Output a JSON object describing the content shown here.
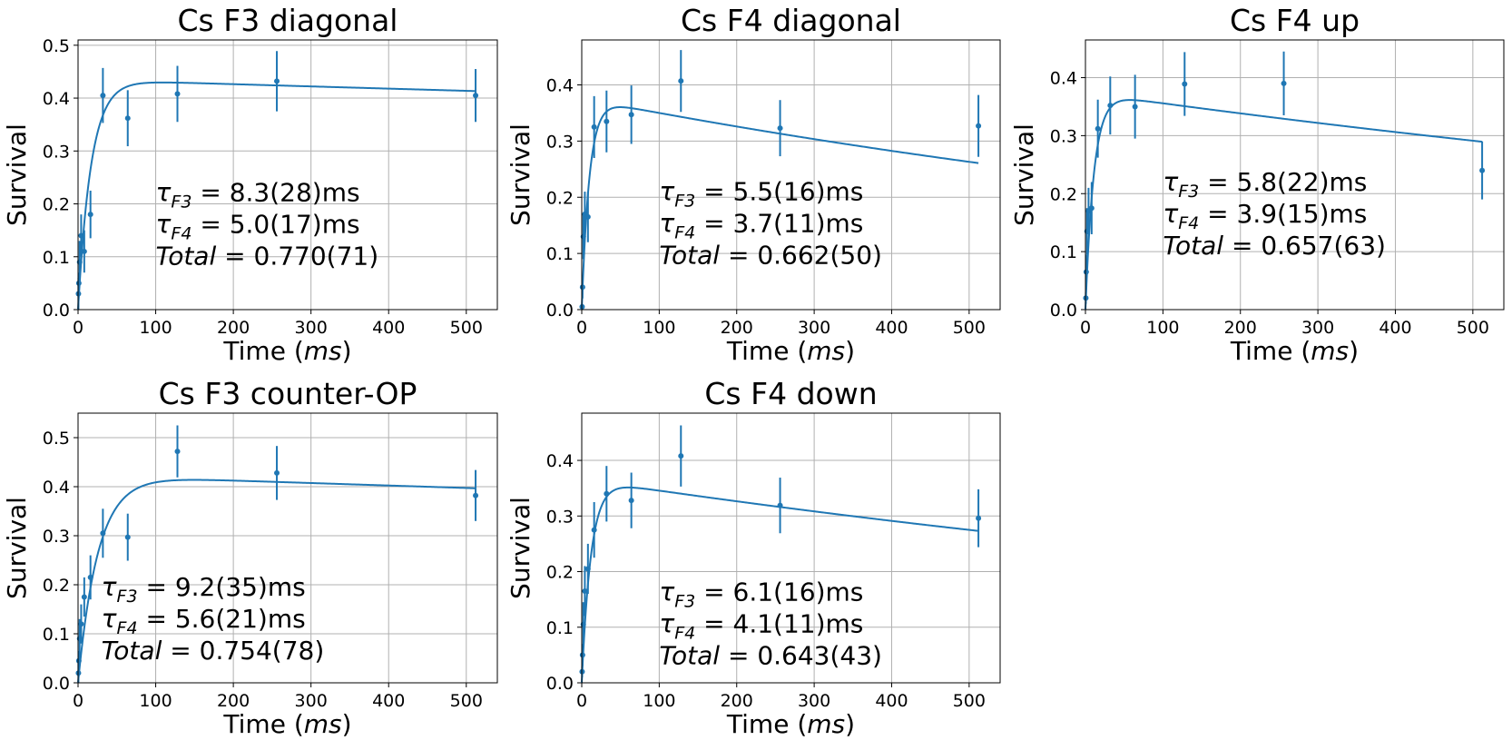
{
  "figure": {
    "series_color": "#1f77b4",
    "grid_color": "#b0b0b0"
  },
  "chart_data": [
    {
      "type": "scatter",
      "title": "Cs F3 diagonal",
      "xlabel": "Time (ms)",
      "ylabel": "Survival",
      "xlim": [
        0,
        540
      ],
      "ylim": [
        0,
        0.51
      ],
      "xticks": [
        "0",
        "100",
        "200",
        "300",
        "400",
        "500"
      ],
      "yticks": [
        "0.0",
        "0.1",
        "0.2",
        "0.3",
        "0.4",
        "0.5"
      ],
      "grid": true,
      "points": [
        {
          "x": 0.5,
          "y": 0.03,
          "err": 0.03
        },
        {
          "x": 1,
          "y": 0.05,
          "err": 0.02
        },
        {
          "x": 2,
          "y": 0.09,
          "err": 0.04
        },
        {
          "x": 4,
          "y": 0.14,
          "err": 0.04
        },
        {
          "x": 8,
          "y": 0.11,
          "err": 0.04
        },
        {
          "x": 16,
          "y": 0.18,
          "err": 0.045
        },
        {
          "x": 32,
          "y": 0.405,
          "err": 0.052
        },
        {
          "x": 64,
          "y": 0.362,
          "err": 0.053
        },
        {
          "x": 128,
          "y": 0.408,
          "err": 0.053
        },
        {
          "x": 256,
          "y": 0.432,
          "err": 0.057
        },
        {
          "x": 512,
          "y": 0.405,
          "err": 0.05
        }
      ],
      "fit": {
        "a": 0.435,
        "tau_rise_ms": 17,
        "tau_decay_ms": 10000
      },
      "annotation": {
        "tau_f3": "8.3(28)",
        "tau_f4": "5.0(17)",
        "total": "0.770(71)",
        "unit": "ms",
        "x": 100,
        "y_top": 0.205
      }
    },
    {
      "type": "scatter",
      "title": "Cs F4 diagonal",
      "xlabel": "Time (ms)",
      "ylabel": "Survival",
      "xlim": [
        0,
        540
      ],
      "ylim": [
        0,
        0.48
      ],
      "xticks": [
        "0",
        "100",
        "200",
        "300",
        "400",
        "500"
      ],
      "yticks": [
        "0.0",
        "0.1",
        "0.2",
        "0.3",
        "0.4"
      ],
      "grid": true,
      "points": [
        {
          "x": 0.5,
          "y": 0.005,
          "err": 0.005
        },
        {
          "x": 1,
          "y": 0.04,
          "err": 0.02
        },
        {
          "x": 2,
          "y": 0.13,
          "err": 0.04
        },
        {
          "x": 4,
          "y": 0.17,
          "err": 0.04
        },
        {
          "x": 8,
          "y": 0.165,
          "err": 0.045
        },
        {
          "x": 16,
          "y": 0.325,
          "err": 0.055
        },
        {
          "x": 32,
          "y": 0.335,
          "err": 0.055
        },
        {
          "x": 64,
          "y": 0.347,
          "err": 0.052
        },
        {
          "x": 128,
          "y": 0.407,
          "err": 0.055
        },
        {
          "x": 256,
          "y": 0.323,
          "err": 0.05
        },
        {
          "x": 512,
          "y": 0.327,
          "err": 0.055
        }
      ],
      "fit": {
        "a": 0.376,
        "tau_rise_ms": 10,
        "tau_decay_ms": 1400
      },
      "annotation": {
        "tau_f3": "5.5(16)",
        "tau_f4": "3.7(11)",
        "total": "0.662(50)",
        "unit": "ms",
        "x": 100,
        "y_top": 0.195
      }
    },
    {
      "type": "scatter",
      "title": "Cs F4 up",
      "xlabel": "Time (ms)",
      "ylabel": "Survival",
      "xlim": [
        0,
        540
      ],
      "ylim": [
        0,
        0.465
      ],
      "xticks": [
        "0",
        "100",
        "200",
        "300",
        "400",
        "500"
      ],
      "yticks": [
        "0.0",
        "0.1",
        "0.2",
        "0.3",
        "0.4"
      ],
      "grid": true,
      "points": [
        {
          "x": 0.5,
          "y": 0.02,
          "err": 0.01
        },
        {
          "x": 1,
          "y": 0.065,
          "err": 0.03
        },
        {
          "x": 2,
          "y": 0.135,
          "err": 0.04
        },
        {
          "x": 4,
          "y": 0.17,
          "err": 0.04
        },
        {
          "x": 8,
          "y": 0.175,
          "err": 0.045
        },
        {
          "x": 16,
          "y": 0.312,
          "err": 0.05
        },
        {
          "x": 32,
          "y": 0.352,
          "err": 0.05
        },
        {
          "x": 64,
          "y": 0.35,
          "err": 0.055
        },
        {
          "x": 128,
          "y": 0.389,
          "err": 0.055
        },
        {
          "x": 256,
          "y": 0.39,
          "err": 0.055
        },
        {
          "x": 512,
          "y": 0.24,
          "err": 0.05
        }
      ],
      "fit": {
        "a": 0.374,
        "tau_rise_ms": 11,
        "tau_decay_ms": 2000
      },
      "annotation": {
        "tau_f3": "5.8(22)",
        "tau_f4": "3.9(15)",
        "total": "0.657(63)",
        "unit": "ms",
        "x": 100,
        "y_top": 0.205
      }
    },
    {
      "type": "scatter",
      "title": "Cs F3 counter-OP",
      "xlabel": "Time (ms)",
      "ylabel": "Survival",
      "xlim": [
        0,
        540
      ],
      "ylim": [
        0,
        0.55
      ],
      "xticks": [
        "0",
        "100",
        "200",
        "300",
        "400",
        "500"
      ],
      "yticks": [
        "0.0",
        "0.1",
        "0.2",
        "0.3",
        "0.4",
        "0.5"
      ],
      "grid": true,
      "points": [
        {
          "x": 0.5,
          "y": 0.02,
          "err": 0.02
        },
        {
          "x": 1,
          "y": 0.045,
          "err": 0.02
        },
        {
          "x": 2,
          "y": 0.09,
          "err": 0.04
        },
        {
          "x": 4,
          "y": 0.12,
          "err": 0.04
        },
        {
          "x": 8,
          "y": 0.175,
          "err": 0.04
        },
        {
          "x": 16,
          "y": 0.215,
          "err": 0.045
        },
        {
          "x": 32,
          "y": 0.305,
          "err": 0.05
        },
        {
          "x": 64,
          "y": 0.297,
          "err": 0.048
        },
        {
          "x": 128,
          "y": 0.472,
          "err": 0.053
        },
        {
          "x": 256,
          "y": 0.428,
          "err": 0.055
        },
        {
          "x": 512,
          "y": 0.382,
          "err": 0.052
        }
      ],
      "fit": {
        "a": 0.423,
        "tau_rise_ms": 26,
        "tau_decay_ms": 8000
      },
      "annotation": {
        "tau_f3": "9.2(35)",
        "tau_f4": "5.6(21)",
        "total": "0.754(78)",
        "unit": "ms",
        "x": 30,
        "y_top": 0.178
      }
    },
    {
      "type": "scatter",
      "title": "Cs F4 down",
      "xlabel": "Time (ms)",
      "ylabel": "Survival",
      "xlim": [
        0,
        540
      ],
      "ylim": [
        0,
        0.485
      ],
      "xticks": [
        "0",
        "100",
        "200",
        "300",
        "400",
        "500"
      ],
      "yticks": [
        "0.0",
        "0.1",
        "0.2",
        "0.3",
        "0.4"
      ],
      "grid": true,
      "points": [
        {
          "x": 0.5,
          "y": 0.02,
          "err": 0.01
        },
        {
          "x": 1,
          "y": 0.05,
          "err": 0.02
        },
        {
          "x": 2,
          "y": 0.105,
          "err": 0.04
        },
        {
          "x": 4,
          "y": 0.165,
          "err": 0.045
        },
        {
          "x": 8,
          "y": 0.205,
          "err": 0.045
        },
        {
          "x": 16,
          "y": 0.275,
          "err": 0.05
        },
        {
          "x": 32,
          "y": 0.34,
          "err": 0.05
        },
        {
          "x": 64,
          "y": 0.328,
          "err": 0.05
        },
        {
          "x": 128,
          "y": 0.408,
          "err": 0.055
        },
        {
          "x": 256,
          "y": 0.319,
          "err": 0.05
        },
        {
          "x": 512,
          "y": 0.296,
          "err": 0.052
        }
      ],
      "fit": {
        "a": 0.366,
        "tau_rise_ms": 12,
        "tau_decay_ms": 1750
      },
      "annotation": {
        "tau_f3": "6.1(16)",
        "tau_f4": "4.1(11)",
        "total": "0.643(43)",
        "unit": "ms",
        "x": 100,
        "y_top": 0.148
      }
    }
  ]
}
